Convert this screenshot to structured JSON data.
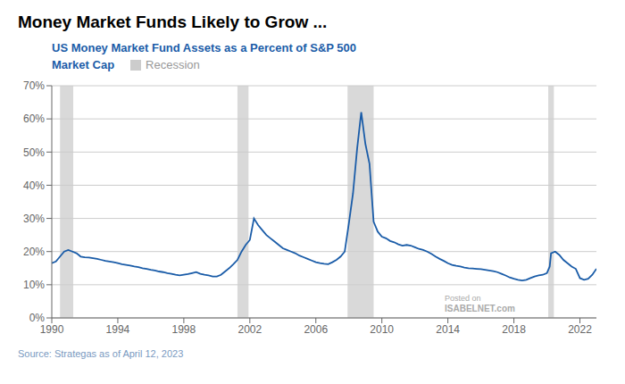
{
  "chart_data": {
    "type": "line",
    "title": "Money Market Funds Likely to Grow ...",
    "subtitle": [
      "US Money Market Fund Assets as a Percent of S&P 500",
      "Market Cap"
    ],
    "source": "Source: Strategas as of April 12, 2023",
    "annotations": [
      "Posted on",
      "ISABELNET.com"
    ],
    "color": "#1a5ca8",
    "recessions": {
      "name": "Recession",
      "color": "#cccccc",
      "ranges": [
        [
          1990.5,
          1991.3
        ],
        [
          2001.25,
          2001.92
        ],
        [
          2007.92,
          2009.5
        ],
        [
          2020.08,
          2020.42
        ]
      ]
    },
    "xlim": [
      1990,
      2023
    ],
    "ylim": [
      0,
      0.7
    ],
    "xticks": [
      1990,
      1994,
      1998,
      2002,
      2006,
      2010,
      2014,
      2018,
      2022
    ],
    "yticks": [
      {
        "value": 0.0,
        "label": "0%"
      },
      {
        "value": 0.1,
        "label": "10%"
      },
      {
        "value": 0.2,
        "label": "20%"
      },
      {
        "value": 0.3,
        "label": "30%"
      },
      {
        "value": 0.4,
        "label": "40%"
      },
      {
        "value": 0.5,
        "label": "50%"
      },
      {
        "value": 0.6,
        "label": "60%"
      },
      {
        "value": 0.7,
        "label": "70%"
      }
    ],
    "grid": true,
    "x": [
      1990.0,
      1990.25,
      1990.5,
      1990.75,
      1991.0,
      1991.25,
      1991.5,
      1991.75,
      1992.0,
      1992.25,
      1992.5,
      1992.75,
      1993.0,
      1993.25,
      1993.5,
      1993.75,
      1994.0,
      1994.25,
      1994.5,
      1994.75,
      1995.0,
      1995.25,
      1995.5,
      1995.75,
      1996.0,
      1996.25,
      1996.5,
      1996.75,
      1997.0,
      1997.25,
      1997.5,
      1997.75,
      1998.0,
      1998.25,
      1998.5,
      1998.75,
      1999.0,
      1999.25,
      1999.5,
      1999.75,
      2000.0,
      2000.25,
      2000.5,
      2000.75,
      2001.0,
      2001.25,
      2001.5,
      2001.75,
      2002.0,
      2002.25,
      2002.5,
      2002.75,
      2003.0,
      2003.25,
      2003.5,
      2003.75,
      2004.0,
      2004.25,
      2004.5,
      2004.75,
      2005.0,
      2005.25,
      2005.5,
      2005.75,
      2006.0,
      2006.25,
      2006.5,
      2006.75,
      2007.0,
      2007.25,
      2007.5,
      2007.75,
      2008.0,
      2008.25,
      2008.5,
      2008.75,
      2009.0,
      2009.25,
      2009.5,
      2009.75,
      2010.0,
      2010.25,
      2010.5,
      2010.75,
      2011.0,
      2011.25,
      2011.5,
      2011.75,
      2012.0,
      2012.25,
      2012.5,
      2012.75,
      2013.0,
      2013.25,
      2013.5,
      2013.75,
      2014.0,
      2014.25,
      2014.5,
      2014.75,
      2015.0,
      2015.25,
      2015.5,
      2015.75,
      2016.0,
      2016.25,
      2016.5,
      2016.75,
      2017.0,
      2017.25,
      2017.5,
      2017.75,
      2018.0,
      2018.25,
      2018.5,
      2018.75,
      2019.0,
      2019.25,
      2019.5,
      2019.75,
      2020.0,
      2020.17,
      2020.25,
      2020.5,
      2020.75,
      2021.0,
      2021.25,
      2021.5,
      2021.75,
      2022.0,
      2022.25,
      2022.5,
      2022.75,
      2023.0
    ],
    "values": [
      0.165,
      0.17,
      0.185,
      0.2,
      0.205,
      0.2,
      0.195,
      0.185,
      0.183,
      0.182,
      0.18,
      0.178,
      0.175,
      0.172,
      0.17,
      0.168,
      0.165,
      0.162,
      0.16,
      0.158,
      0.155,
      0.153,
      0.15,
      0.148,
      0.145,
      0.143,
      0.14,
      0.138,
      0.135,
      0.133,
      0.13,
      0.128,
      0.13,
      0.132,
      0.135,
      0.138,
      0.133,
      0.13,
      0.128,
      0.125,
      0.125,
      0.13,
      0.14,
      0.15,
      0.162,
      0.175,
      0.2,
      0.22,
      0.235,
      0.3,
      0.28,
      0.265,
      0.25,
      0.24,
      0.23,
      0.22,
      0.21,
      0.205,
      0.2,
      0.195,
      0.188,
      0.183,
      0.178,
      0.173,
      0.168,
      0.165,
      0.163,
      0.162,
      0.168,
      0.175,
      0.185,
      0.2,
      0.285,
      0.375,
      0.51,
      0.62,
      0.525,
      0.465,
      0.29,
      0.26,
      0.245,
      0.24,
      0.232,
      0.228,
      0.222,
      0.218,
      0.22,
      0.218,
      0.213,
      0.208,
      0.205,
      0.2,
      0.193,
      0.185,
      0.178,
      0.172,
      0.165,
      0.16,
      0.157,
      0.155,
      0.152,
      0.15,
      0.149,
      0.148,
      0.147,
      0.145,
      0.143,
      0.141,
      0.138,
      0.133,
      0.128,
      0.122,
      0.118,
      0.115,
      0.113,
      0.115,
      0.12,
      0.125,
      0.128,
      0.13,
      0.135,
      0.155,
      0.195,
      0.2,
      0.19,
      0.175,
      0.165,
      0.155,
      0.148,
      0.12,
      0.115,
      0.118,
      0.13,
      0.148
    ]
  }
}
